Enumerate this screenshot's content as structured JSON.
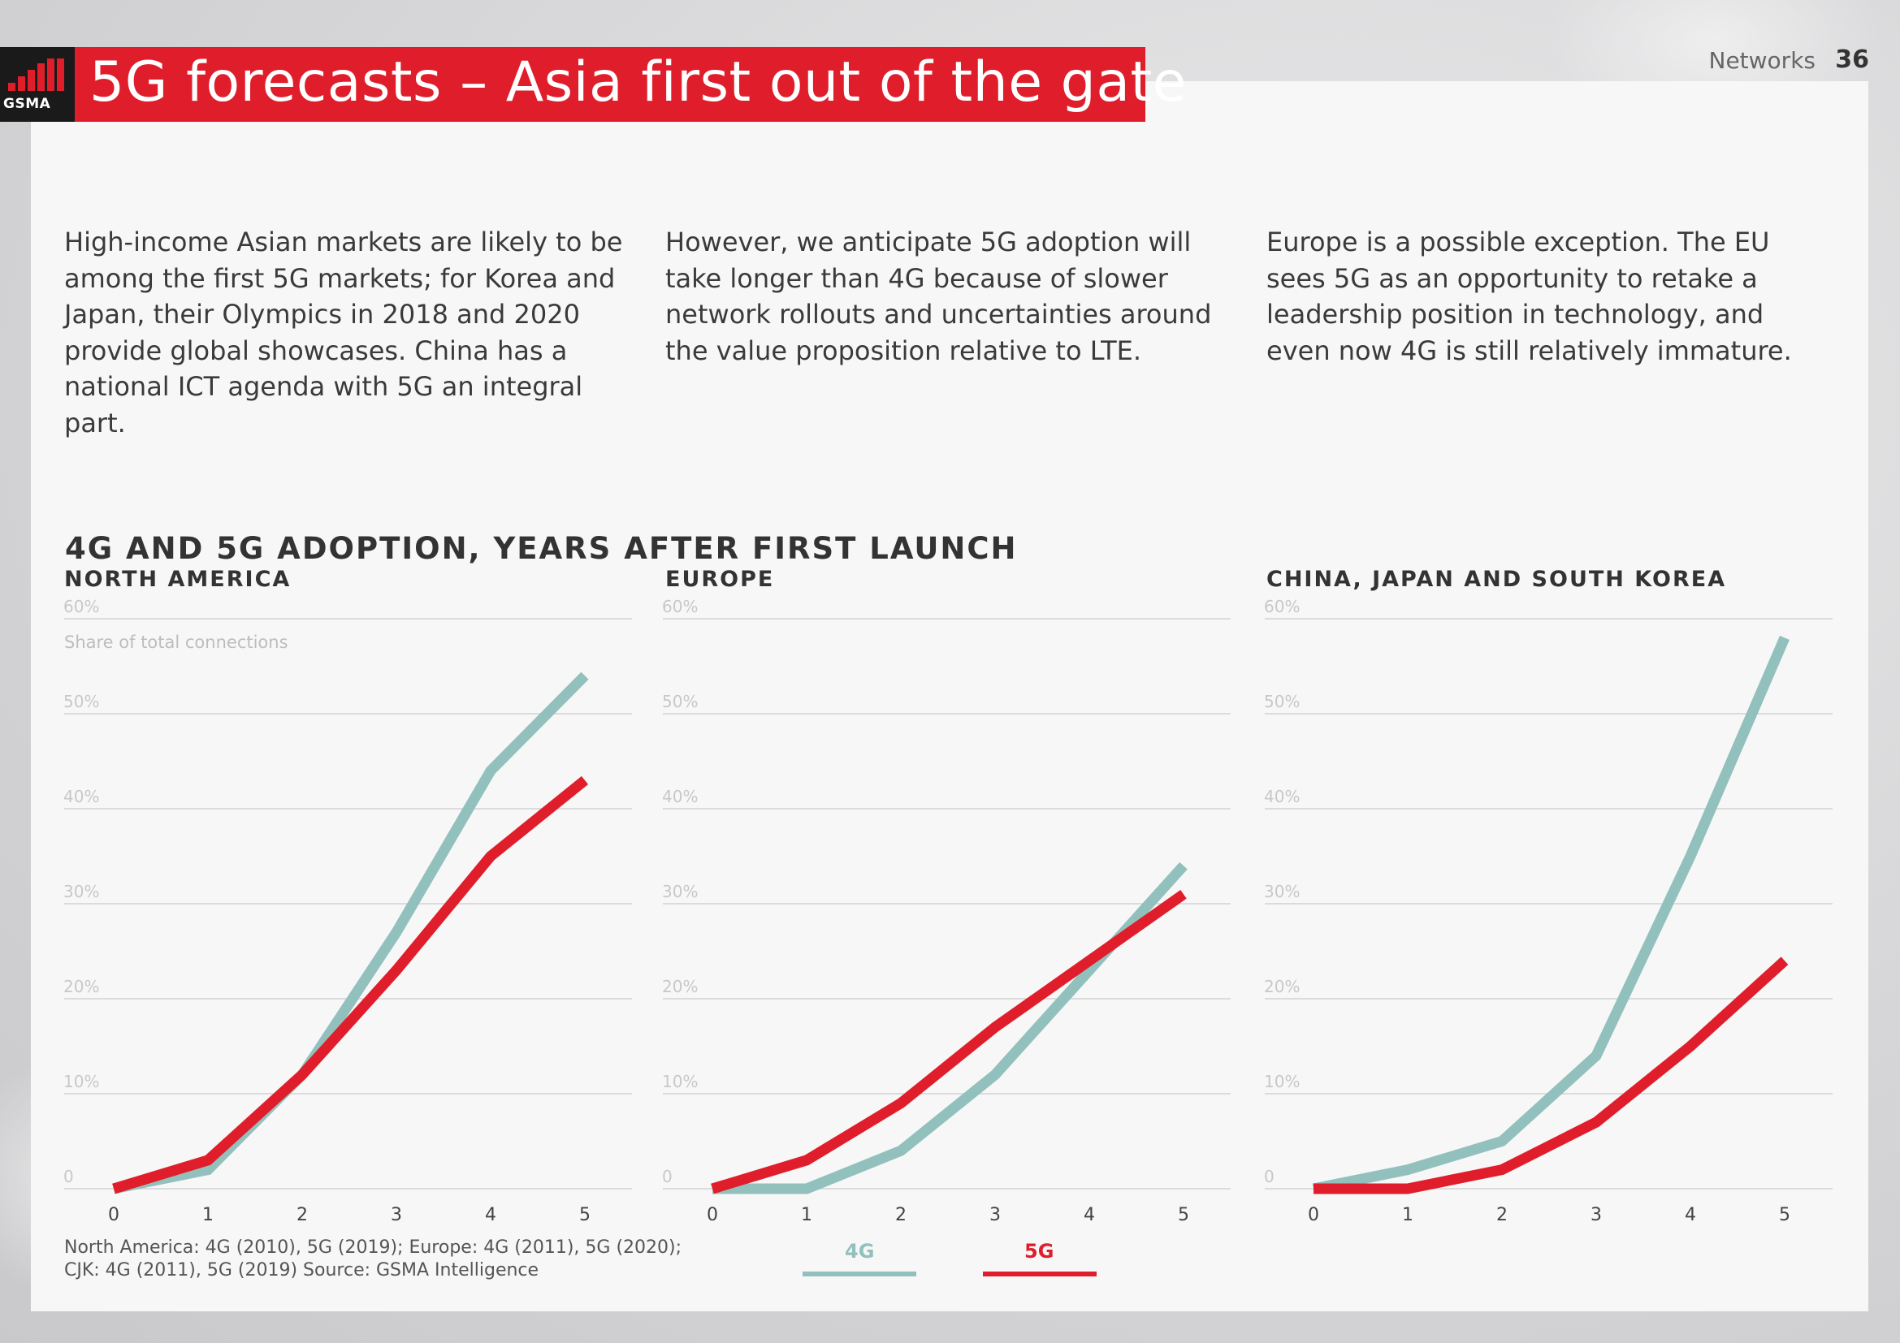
{
  "header": {
    "logo_text": "GSMA",
    "title": "5G forecasts – Asia first out of the gate",
    "section": "Networks",
    "page_number": "36"
  },
  "paragraphs": [
    "High-income Asian markets are likely to be among the first 5G markets; for Korea and Japan, their Olympics in 2018 and 2020 provide global showcases. China has a national ICT agenda with 5G an integral part.",
    "However, we anticipate 5G adoption will take longer than 4G because of slower network rollouts and uncertainties around the value proposition relative to LTE.",
    "Europe is a possible exception. The EU sees 5G as an opportunity to retake a leadership position in technology, and even now 4G is still relatively immature."
  ],
  "chart_heading": "4G AND 5G ADOPTION, YEARS AFTER FIRST LAUNCH",
  "colors": {
    "4g": "#92c1bd",
    "5g": "#e01e2b",
    "accent": "#e01e2b"
  },
  "chart_data": [
    {
      "type": "line",
      "title": "NORTH AMERICA",
      "ylabel": "Share of total connections",
      "x": [
        0,
        1,
        2,
        3,
        4,
        5
      ],
      "ylim": [
        0,
        60
      ],
      "yticks": [
        "0",
        "10%",
        "20%",
        "30%",
        "40%",
        "50%",
        "60%"
      ],
      "series": [
        {
          "name": "4G",
          "values": [
            0,
            2,
            12,
            27,
            44,
            54
          ]
        },
        {
          "name": "5G",
          "values": [
            0,
            3,
            12,
            23,
            35,
            43
          ]
        }
      ]
    },
    {
      "type": "line",
      "title": "EUROPE",
      "x": [
        0,
        1,
        2,
        3,
        4,
        5
      ],
      "ylim": [
        0,
        60
      ],
      "yticks": [
        "0",
        "10%",
        "20%",
        "30%",
        "40%",
        "50%",
        "60%"
      ],
      "series": [
        {
          "name": "4G",
          "values": [
            0,
            0,
            4,
            12,
            23,
            34
          ]
        },
        {
          "name": "5G",
          "values": [
            0,
            3,
            9,
            17,
            24,
            31
          ]
        }
      ]
    },
    {
      "type": "line",
      "title": "CHINA, JAPAN AND SOUTH KOREA",
      "x": [
        0,
        1,
        2,
        3,
        4,
        5
      ],
      "ylim": [
        0,
        60
      ],
      "yticks": [
        "0",
        "10%",
        "20%",
        "30%",
        "40%",
        "50%",
        "60%"
      ],
      "series": [
        {
          "name": "4G",
          "values": [
            0,
            2,
            5,
            14,
            35,
            58
          ]
        },
        {
          "name": "5G",
          "values": [
            0,
            0,
            2,
            7,
            15,
            24
          ]
        }
      ]
    }
  ],
  "source_lines": [
    "North America: 4G (2010), 5G (2019); Europe: 4G (2011), 5G (2020);",
    "CJK: 4G (2011), 5G (2019) Source: GSMA Intelligence"
  ],
  "legend": [
    {
      "label": "4G"
    },
    {
      "label": "5G"
    }
  ]
}
